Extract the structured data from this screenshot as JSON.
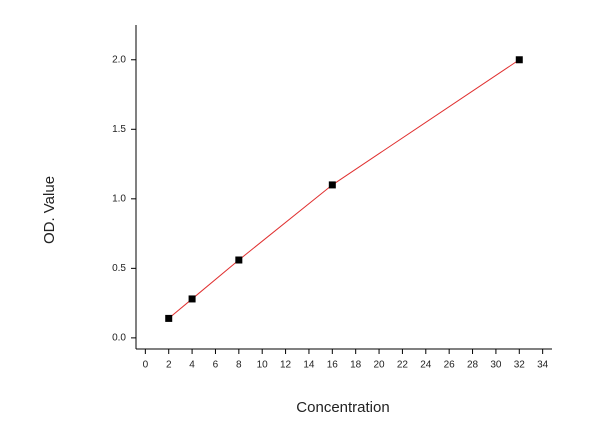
{
  "chart_data": {
    "type": "scatter",
    "x_label": "Concentration",
    "y_label": "OD. Value",
    "series": [
      {
        "color": "#000000",
        "line_color": "#e03030",
        "x": [
          2,
          4,
          8,
          16,
          32
        ],
        "values": [
          0.14,
          0.28,
          0.56,
          1.1,
          2.0
        ]
      }
    ],
    "xlim": [
      -0.8,
      34.8
    ],
    "ylim": [
      -0.08,
      2.25
    ],
    "xticks": [
      0,
      2,
      4,
      6,
      8,
      10,
      12,
      14,
      16,
      18,
      20,
      22,
      24,
      26,
      28,
      30,
      32,
      34
    ],
    "yticks": [
      {
        "value": 0,
        "label": "0.0"
      },
      {
        "value": 0.5,
        "label": "0.5"
      },
      {
        "value": 1,
        "label": "1.0"
      },
      {
        "value": 1.5,
        "label": "1.5"
      },
      {
        "value": 2,
        "label": "2.0"
      }
    ],
    "grid": false
  }
}
